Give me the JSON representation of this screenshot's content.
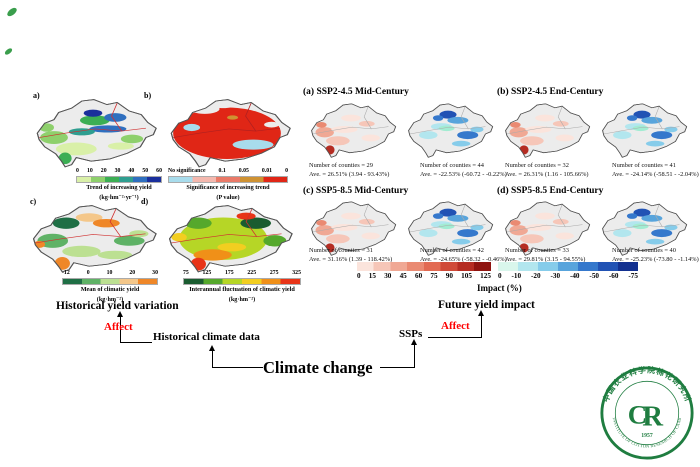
{
  "historical": {
    "heading": "Historical yield variation",
    "panels": [
      {
        "tag": "a)",
        "ticks": [
          "0",
          "10",
          "20",
          "30",
          "40",
          "50",
          "60"
        ],
        "gradient": [
          "#d9f0a8",
          "#8ed06c",
          "#3cae54",
          "#2f9e90",
          "#2f6fbf",
          "#1a2f9c"
        ],
        "caption1": "Trend of increasing yield",
        "caption2": "(kg·hm⁻²·yr⁻¹)"
      },
      {
        "tag": "b)",
        "ticks": [
          "No significance",
          "0.1",
          "0.05",
          "0.01",
          "0"
        ],
        "gradient": [
          "#a8dcec",
          "#f4b8ae",
          "#ea7a68",
          "#cf9232",
          "#e02616"
        ],
        "caption1": "Significance of increasing trend",
        "caption2": "(P value)"
      },
      {
        "tag": "c)",
        "ticks": [
          "-12",
          "0",
          "10",
          "20",
          "30"
        ],
        "gradient": [
          "#1f6f45",
          "#5fb266",
          "#bce092",
          "#f4c78a",
          "#ef8728"
        ],
        "caption1": "Mean of climatic yield",
        "caption2": "(kg·hm⁻²)"
      },
      {
        "tag": "d)",
        "ticks": [
          "75",
          "125",
          "175",
          "225",
          "275",
          "325"
        ],
        "gradient": [
          "#1a5c30",
          "#55a82c",
          "#b6d626",
          "#f2ce20",
          "#f09018",
          "#e83418"
        ],
        "caption1": "Interannual fluctuation of climatic yield",
        "caption2": "(kg·hm⁻²)"
      }
    ]
  },
  "future": {
    "heading": "Future yield impact",
    "panels": [
      {
        "title": "(a) SSP2-4.5 Mid-Century",
        "pos_counties": "Number of counties = 29",
        "pos_ave": "Ave. = 26.51% (3.94 - 93.43%)",
        "neg_counties": "Number of counties = 44",
        "neg_ave": "Ave. = -22.53% (-60.72 - -0.22%)"
      },
      {
        "title": "(b) SSP2-4.5 End-Century",
        "pos_counties": "Number of counties = 32",
        "pos_ave": "Ave. = 26.31% (1.16 - 105.66%)",
        "neg_counties": "Number of counties = 41",
        "neg_ave": "Ave. = -24.14% (-58.51 - -2.04%)"
      },
      {
        "title": "(c) SSP5-8.5 Mid-Century",
        "pos_counties": "Number of counties = 31",
        "pos_ave": "Ave. = 31.16% (1.39 - 118.42%)",
        "neg_counties": "Number of counties = 42",
        "neg_ave": "Ave. = -24.65% (-58.32 - -0.46%)"
      },
      {
        "title": "(d) SSP5-8.5 End-Century",
        "pos_counties": "Number of counties = 33",
        "pos_ave": "Ave. = 29.81% (3.15 - 94.55%)",
        "neg_counties": "Number of counties = 40",
        "neg_ave": "Ave. = -25.23% (-73.80 - -1.14%)"
      }
    ],
    "impact": {
      "label": "Impact (%)",
      "pos_ticks": [
        "0",
        "15",
        "30",
        "45",
        "60",
        "75",
        "90",
        "105",
        "125"
      ],
      "pos_colors": [
        "#fbe4dc",
        "#f6c6b8",
        "#f0a894",
        "#ea8a72",
        "#e26a52",
        "#d04a38",
        "#b52c22",
        "#8f1410"
      ],
      "neg_ticks": [
        "0",
        "-10",
        "-20",
        "-30",
        "-40",
        "-50",
        "-60",
        "-75"
      ],
      "neg_colors": [
        "#d9f6ec",
        "#b2e6ee",
        "#86ccea",
        "#58a4dc",
        "#3578cc",
        "#2152b4",
        "#123090"
      ]
    }
  },
  "flowchart": {
    "affect_left": "Affect",
    "affect_right": "Affect",
    "historical_climate_data": "Historical climate data",
    "climate_change": "Climate change",
    "ssps": "SSPs",
    "affect_color": "#fe0000"
  },
  "logo": {
    "cn": "中国农业科学院棉花研究所",
    "en": "INSTITUTE OF COTTON RESEARCH OF CAAS",
    "year": "1957",
    "color": "#1f7d40"
  }
}
